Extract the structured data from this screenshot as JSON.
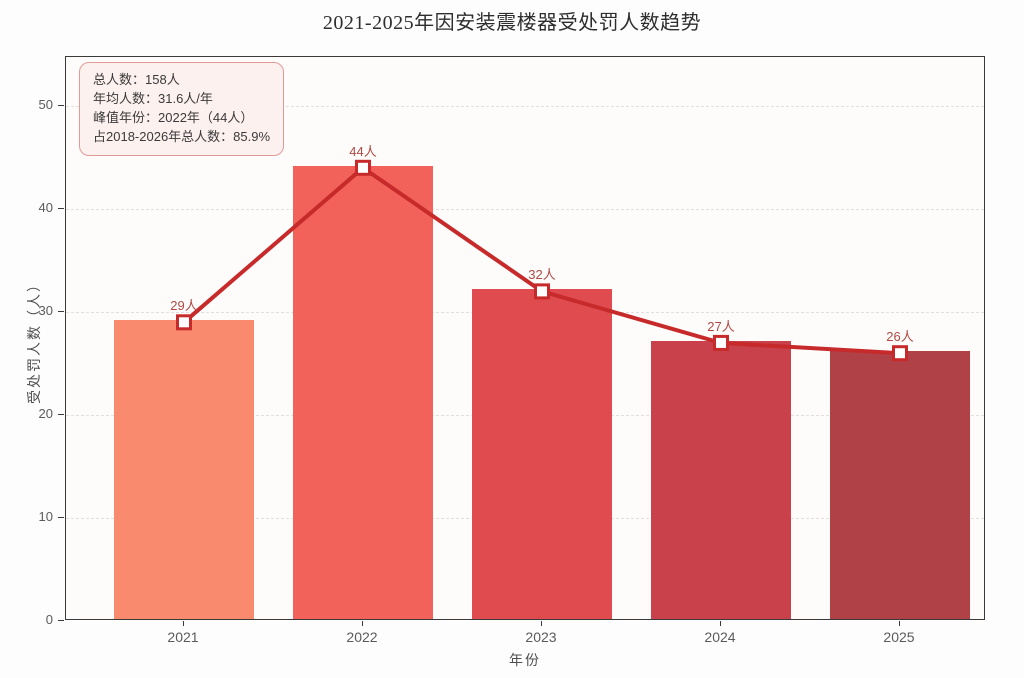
{
  "title": "2021-2025年因安装震楼器受处罚人数趋势",
  "annotation": {
    "line1": "总人数：158人",
    "line2": "年均人数：31.6人/年",
    "line3": "峰值年份：2022年（44人）",
    "line4": "占2018-2026年总人数：85.9%"
  },
  "axes": {
    "xlabel": "年份",
    "ylabel": "受处罚人数（人）"
  },
  "chart_data": {
    "type": "bar",
    "overlay": "line",
    "title": "2021-2025年因安装震楼器受处罚人数趋势",
    "xlabel": "年份",
    "ylabel": "受处罚人数（人）",
    "categories": [
      "2021",
      "2022",
      "2023",
      "2024",
      "2025"
    ],
    "values": [
      29,
      44,
      32,
      27,
      26
    ],
    "value_labels": [
      "29人",
      "44人",
      "32人",
      "27人",
      "26人"
    ],
    "ylim": [
      0,
      50
    ],
    "yticks": [
      0,
      10,
      20,
      30,
      40,
      50
    ],
    "grid": "horizontal-dashed",
    "legend": "none",
    "bar_colors": [
      "#F98A6E",
      "#F2625A",
      "#E04B4F",
      "#C8414B",
      "#AF4147"
    ],
    "line_color": "#C62A2A",
    "marker_style": "square-white-fill-red-edge",
    "value_label_color": "#B14A44"
  }
}
